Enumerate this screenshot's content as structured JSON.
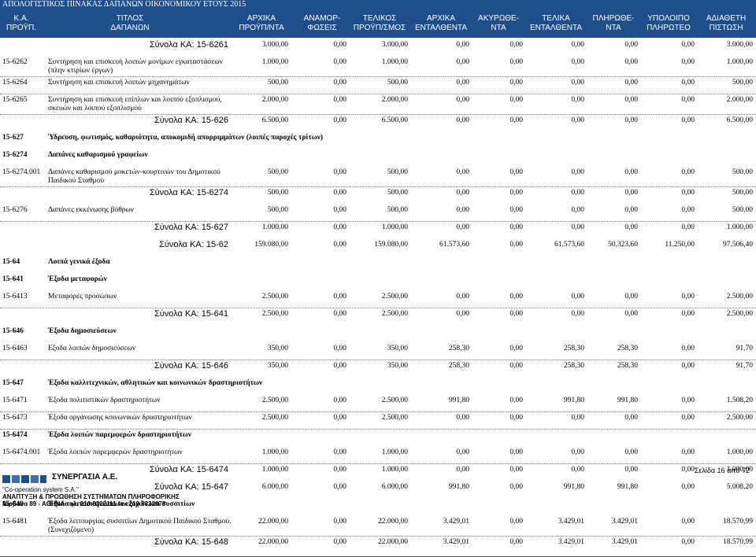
{
  "report_title": "ΑΠΟΛΟΓΙΣΤΙΚΟΣ ΠΙΝΑΚΑΣ ΔΑΠΑΝΩΝ ΟΙΚΟΝΟΜΙΚΟΥ ΕΤΟΥΣ 2015",
  "columns": [
    {
      "l1": "Κ.Α.",
      "l2": "ΠΡΟΫΠ."
    },
    {
      "l1": "ΤΙΤΛΟΣ",
      "l2": "ΔΑΠΑΝΩΝ"
    },
    {
      "l1": "ΑΡΧΙΚΑ",
      "l2": "ΠΡΟΫΠ/ΝΤΑ"
    },
    {
      "l1": "ΑΝΑΜΟΡ-",
      "l2": "ΦΩΣΕΙΣ"
    },
    {
      "l1": "ΤΕΛΙΚΟΣ",
      "l2": "ΠΡΟΫΠ/ΣΜΟΣ"
    },
    {
      "l1": "ΑΡΧΙΚΑ",
      "l2": "ΕΝΤΑΛΘΕΝΤΑ"
    },
    {
      "l1": "ΑΚΥΡΩΘΕ-",
      "l2": "ΝΤΑ"
    },
    {
      "l1": "ΤΕΛΙΚΑ",
      "l2": "ΕΝΤΑΛΘΕΝΤΑ"
    },
    {
      "l1": "ΠΛΗΡΩΘΕ-",
      "l2": "ΝΤΑ"
    },
    {
      "l1": "ΥΠΟΛΟΙΠΟ",
      "l2": "ΠΛΗΡΩΤΕΟ"
    },
    {
      "l1": "ΑΔΙΑΘΕΤΗ",
      "l2": "ΠΙΣΤΩΣΗ"
    }
  ],
  "rows": [
    {
      "type": "total",
      "label": "Σύνολα ΚΑ: 15-6261",
      "values": [
        "3.000,00",
        "0,00",
        "3.000,00",
        "0,00",
        "0,00",
        "0,00",
        "0,00",
        "0,00",
        "3.000,00"
      ]
    },
    {
      "type": "item",
      "code": "15-6262",
      "desc": "Συντήρηση και επισκευή λοιπών μονίμων εγκαταστάσεων (πλην κτιρίων έργων)",
      "values": [
        "1.000,00",
        "0,00",
        "1.000,00",
        "0,00",
        "0,00",
        "0,00",
        "0,00",
        "0,00",
        "1.000,00"
      ]
    },
    {
      "type": "item",
      "code": "15-6264",
      "desc": "Συντήρηση και επισκευή λοιπών μηχανημάτων",
      "values": [
        "500,00",
        "0,00",
        "500,00",
        "0,00",
        "0,00",
        "0,00",
        "0,00",
        "0,00",
        "500,00"
      ]
    },
    {
      "type": "item",
      "code": "15-6265",
      "desc": "Συντήρηση και επισκευή επίπλων και λοιπού εξοπλισμού, σκευών και λοιπού εξοπλισμού",
      "values": [
        "2.000,00",
        "0,00",
        "2.000,00",
        "0,00",
        "0,00",
        "0,00",
        "0,00",
        "0,00",
        "2.000,00"
      ]
    },
    {
      "type": "total",
      "label": "Σύνολα ΚΑ: 15-626",
      "values": [
        "6.500,00",
        "0,00",
        "6.500,00",
        "0,00",
        "0,00",
        "0,00",
        "0,00",
        "0,00",
        "6.500,00"
      ]
    },
    {
      "type": "heading",
      "code": "15-627",
      "desc": "Ύδρευση, φωτισμός, καθαριότητα, αποκομιδή απορριμμάτων (λοιπές παροχές τρίτων)"
    },
    {
      "type": "heading",
      "code": "15-6274",
      "desc": "Δαπάνες καθαρισμού γραφείων"
    },
    {
      "type": "item",
      "code": "15-6274.001",
      "desc": "Δαπάνες καθαρισμού μοκετών-κουρτινών του Δημοτικού Παιδικού Σταθμού",
      "values": [
        "500,00",
        "0,00",
        "500,00",
        "0,00",
        "0,00",
        "0,00",
        "0,00",
        "0,00",
        "500,00"
      ]
    },
    {
      "type": "total",
      "label": "Σύνολα ΚΑ: 15-6274",
      "values": [
        "500,00",
        "0,00",
        "500,00",
        "0,00",
        "0,00",
        "0,00",
        "0,00",
        "0,00",
        "500,00"
      ]
    },
    {
      "type": "item",
      "code": "15-6276",
      "desc": "Δαπάνες εκκένωσης βόθρων",
      "values": [
        "500,00",
        "0,00",
        "500,00",
        "0,00",
        "0,00",
        "0,00",
        "0,00",
        "0,00",
        "500,00"
      ]
    },
    {
      "type": "total",
      "label": "Σύνολα ΚΑ: 15-627",
      "values": [
        "1.000,00",
        "0,00",
        "1.000,00",
        "0,00",
        "0,00",
        "0,00",
        "0,00",
        "0,00",
        "1.000,00"
      ]
    },
    {
      "type": "total",
      "label": "Σύνολα ΚΑ: 15-62",
      "values": [
        "159.080,00",
        "0,00",
        "159.080,00",
        "61.573,60",
        "0,00",
        "61.573,60",
        "50.323,60",
        "11.250,00",
        "97.506,40"
      ]
    },
    {
      "type": "heading",
      "code": "15-64",
      "desc": "Λοιπά γενικά έξοδα"
    },
    {
      "type": "heading",
      "code": "15-641",
      "desc": "Έξοδα μεταφορών"
    },
    {
      "type": "item",
      "code": "15-6413",
      "desc": "Μεταφορές προσώπων",
      "values": [
        "2.500,00",
        "0,00",
        "2.500,00",
        "0,00",
        "0,00",
        "0,00",
        "0,00",
        "0,00",
        "2.500,00"
      ]
    },
    {
      "type": "total",
      "label": "Σύνολα ΚΑ: 15-641",
      "values": [
        "2.500,00",
        "0,00",
        "2.500,00",
        "0,00",
        "0,00",
        "0,00",
        "0,00",
        "0,00",
        "2.500,00"
      ]
    },
    {
      "type": "heading",
      "code": "15-646",
      "desc": "Έξοδα δημοσιεύσεων"
    },
    {
      "type": "item",
      "code": "15-6463",
      "desc": "Εξοδα λοιπών δημοσιεύσεων",
      "values": [
        "350,00",
        "0,00",
        "350,00",
        "258,30",
        "0,00",
        "258,30",
        "258,30",
        "0,00",
        "91,70"
      ]
    },
    {
      "type": "total",
      "label": "Σύνολα ΚΑ: 15-646",
      "values": [
        "350,00",
        "0,00",
        "350,00",
        "258,30",
        "0,00",
        "258,30",
        "258,30",
        "0,00",
        "91,70"
      ]
    },
    {
      "type": "heading",
      "code": "15-647",
      "desc": "Έξοδα καλλιτεχνικών, αθλητικών και κοινωνικών δραστηριοτήτων"
    },
    {
      "type": "item",
      "code": "15-6471",
      "desc": "Έξοδα πολιτιστικών δραστηριοτήτων",
      "values": [
        "2.500,00",
        "0,00",
        "2.500,00",
        "991,80",
        "0,00",
        "991,80",
        "991,80",
        "0,00",
        "1.508,20"
      ]
    },
    {
      "type": "item",
      "code": "15-6473",
      "desc": "Έξοδα οργάνωσης κοινωνικών δραστηριοτήτων",
      "values": [
        "2.500,00",
        "0,00",
        "2.500,00",
        "0,00",
        "0,00",
        "0,00",
        "0,00",
        "0,00",
        "2.500,00"
      ]
    },
    {
      "type": "heading",
      "code": "15-6474",
      "desc": "Έξοδα λοιπών παρεμφερών δραστηριοτήτων"
    },
    {
      "type": "item",
      "code": "15-6474.001",
      "desc": "Έξοδα λοιπών παρεμφερών δραστηριοτήτων",
      "values": [
        "1.000,00",
        "0,00",
        "1.000,00",
        "0,00",
        "0,00",
        "0,00",
        "0,00",
        "0,00",
        "1.000,00"
      ]
    },
    {
      "type": "total",
      "label": "Σύνολα ΚΑ: 15-6474",
      "values": [
        "1.000,00",
        "0,00",
        "1.000,00",
        "0,00",
        "0,00",
        "0,00",
        "0,00",
        "0,00",
        "1.000,00"
      ]
    },
    {
      "type": "total",
      "label": "Σύνολα ΚΑ: 15-647",
      "values": [
        "6.000,00",
        "0,00",
        "6.000,00",
        "991,80",
        "0,00",
        "991,80",
        "991,80",
        "0,00",
        "5.008,20"
      ]
    },
    {
      "type": "heading",
      "code": "15-648",
      "desc": "Έξοδα κατασκηνώσεων εξοχών και συσσιτίων"
    },
    {
      "type": "item",
      "code": "15-6481",
      "desc": "Έξοδα λειτουργίας συσσιτίων Δημοτικού Παιδικού Σταθμού.(Συνεχιζόμενο)",
      "values": [
        "22.000,00",
        "0,00",
        "22.000,00",
        "3.429,01",
        "0,00",
        "3.429,01",
        "3.429,01",
        "0,00",
        "18.570,99"
      ]
    },
    {
      "type": "total",
      "label": "Σύνολα ΚΑ: 15-648",
      "values": [
        "22.000,00",
        "0,00",
        "22.000,00",
        "3.429,01",
        "0,00",
        "3.429,01",
        "3.429,01",
        "0,00",
        "18.570,99"
      ]
    }
  ],
  "footer": {
    "page": "Σελίδα 16 από 72",
    "company": "ΣΥΝΕΡΓΑΣΙΑ Α.Ε.",
    "line1": "\"Co-operation system S.A.\"",
    "line2": "ΑΝΑΠΤΥΞΗ & ΠΡΟΩΘΗΣΗ ΣΥΣΤΗΜΑΤΩΝ ΠΛΗΡΟΦΟΡΙΚΗΣ",
    "line3": "Νιρβάνα 89 - ΑΘΗΝΑ τηλ. 210 8322111 fax 210 8322078"
  },
  "colors": {
    "header_bg": "#1f4e8c",
    "header_text": "#ffffff",
    "logo": "#1f4e8c"
  }
}
